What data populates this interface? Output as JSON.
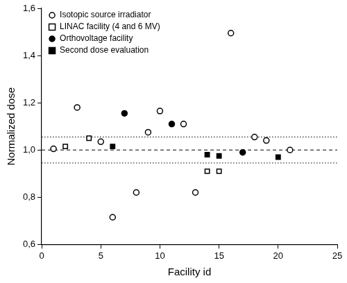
{
  "chart_data": {
    "type": "scatter",
    "x_label": "Facility id",
    "y_label": "Normalized dose",
    "xlim": [
      0,
      25
    ],
    "xticks": [
      0,
      5,
      10,
      15,
      20,
      25
    ],
    "ylim": [
      0.6,
      1.6
    ],
    "yticks": [
      {
        "value": 0.6,
        "label": "0,6"
      },
      {
        "value": 0.8,
        "label": "0,8"
      },
      {
        "value": 1.0,
        "label": "1,0"
      },
      {
        "value": 1.2,
        "label": "1,2"
      },
      {
        "value": 1.4,
        "label": "1,4"
      },
      {
        "value": 1.6,
        "label": "1,6"
      }
    ],
    "grid": false,
    "legend": "upper left",
    "reference_lines": [
      {
        "value": 1.0,
        "line_style": "dashed"
      },
      {
        "value": 1.055,
        "line_style": "dotted"
      },
      {
        "value": 0.945,
        "line_style": "dotted"
      }
    ],
    "series": [
      {
        "name": "Isotopic source irradiator",
        "color": "#000000",
        "marker": "circle_open",
        "x": [
          1,
          3,
          5,
          6,
          8,
          9,
          10,
          12,
          13,
          16,
          18,
          19,
          21
        ],
        "values": [
          1.005,
          1.18,
          1.035,
          0.715,
          0.82,
          1.075,
          1.165,
          1.11,
          0.82,
          1.495,
          1.055,
          1.04,
          1.0
        ]
      },
      {
        "name": "LINAC facility (4 and 6 MV)",
        "color": "#000000",
        "marker": "square_open",
        "x": [
          2,
          4,
          14,
          15
        ],
        "values": [
          1.015,
          1.05,
          0.91,
          0.91
        ]
      },
      {
        "name": "Orthovoltage facility",
        "color": "#000000",
        "marker": "circle",
        "x": [
          7,
          11,
          17
        ],
        "values": [
          1.155,
          1.11,
          0.99
        ]
      },
      {
        "name": "Second dose evaluation",
        "color": "#000000",
        "marker": "square",
        "x": [
          6,
          14,
          15,
          20
        ],
        "values": [
          1.015,
          0.98,
          0.975,
          0.97
        ]
      }
    ]
  }
}
